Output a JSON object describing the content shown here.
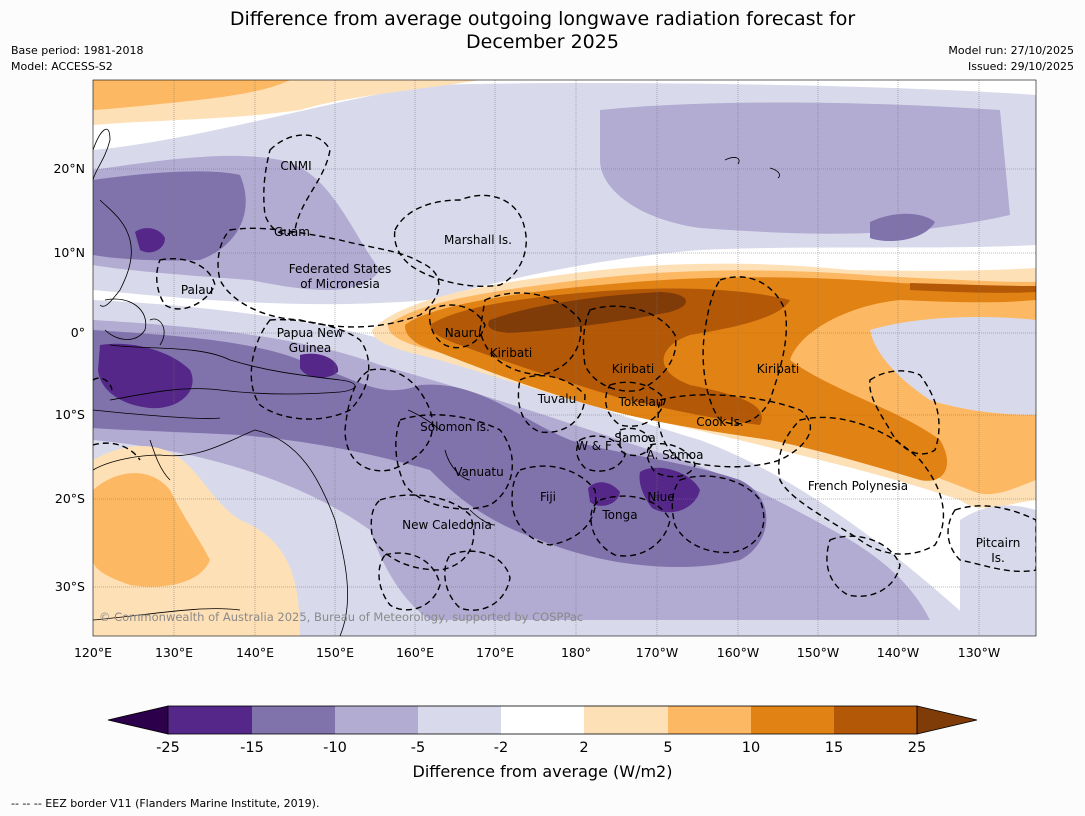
{
  "header": {
    "title_line1": "Difference from average outgoing longwave radiation forecast for",
    "title_line2": "December 2025",
    "base_period": "Base period: 1981-2018",
    "model": "Model: ACCESS-S2",
    "model_run": "Model run: 27/10/2025",
    "issued": "Issued: 29/10/2025"
  },
  "map": {
    "lon_ticks": [
      "120°E",
      "130°E",
      "140°E",
      "150°E",
      "160°E",
      "170°E",
      "180°",
      "170°W",
      "160°W",
      "150°W",
      "140°W",
      "130°W"
    ],
    "lat_ticks": [
      "20°N",
      "10°N",
      "0°",
      "10°S",
      "20°S",
      "30°S"
    ],
    "copyright": "© Commonwealth of Australia 2025, Bureau of Meteorology, supported by COSPPac",
    "labels": {
      "cnmi": "CNMI",
      "guam": "Guam",
      "marshall": "Marshall Is.",
      "fsm1": "Federated States",
      "fsm2": "of Micronesia",
      "palau": "Palau",
      "png1": "Papua New",
      "png2": "Guinea",
      "nauru": "Nauru",
      "kiribati_w": "Kiribati",
      "kiribati_c": "Kiribati",
      "kiribati_e": "Kiribati",
      "tuvalu": "Tuvalu",
      "tokelau": "Tokelau",
      "cook": "Cook Is.",
      "solomon": "Solomon Is.",
      "wf": "W & F",
      "samoa": "Samoa",
      "asamoa": "A. Samoa",
      "vanuatu": "Vanuatu",
      "fiji": "Fiji",
      "niue": "Niue",
      "tonga": "Tonga",
      "frenchpoly": "French Polynesia",
      "newcal": "New Caledonia",
      "pitcairn1": "Pitcairn",
      "pitcairn2": "Is."
    }
  },
  "colorbar": {
    "title": "Difference from average (W/m2)",
    "ticks": [
      "-25",
      "-15",
      "-10",
      "-5",
      "-2",
      "2",
      "5",
      "10",
      "15",
      "25"
    ],
    "colors": {
      "below_min": "#2d004b",
      "n25_15": "#542788",
      "n15_10": "#8073ac",
      "n10_5": "#b2abd2",
      "n5_2": "#d8daeb",
      "n2_2": "#ffffff",
      "p2_5": "#fee0b6",
      "p5_10": "#fdb863",
      "p10_15": "#e08214",
      "p15_25": "#b35806",
      "above_max": "#7f3b08"
    }
  },
  "footer": {
    "legend": "-- -- -- EEZ border V11 (Flanders Marine Institute, 2019)."
  }
}
